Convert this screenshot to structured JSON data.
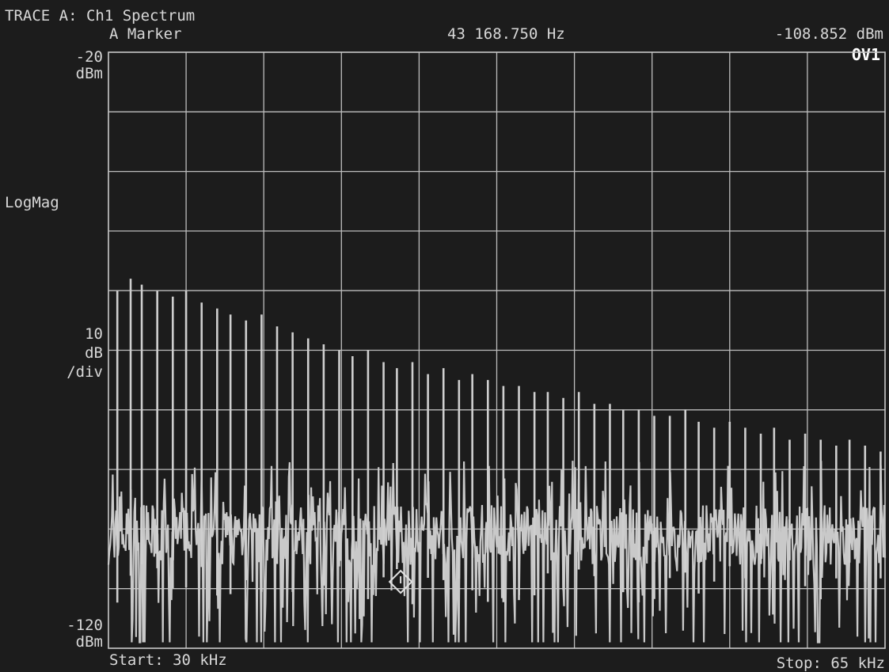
{
  "header": {
    "trace_title": "TRACE A: Ch1 Spectrum",
    "marker_label": "A Marker",
    "marker_freq": "43 168.750 Hz",
    "marker_level": "-108.852 dBm",
    "overload_badge": "OV1"
  },
  "yaxis": {
    "top_value": "-20",
    "top_unit": "dBm",
    "scale_type": "LogMag",
    "scale_value": "10",
    "scale_unit_1": "dB",
    "scale_unit_2": "/div",
    "bottom_value": "-120",
    "bottom_unit": "dBm"
  },
  "xaxis": {
    "start_label": "Start: 30 kHz",
    "stop_label": "Stop: 65 kHz"
  },
  "colors": {
    "background": "#1c1c1c",
    "grid": "#bdbdbd",
    "trace": "#c9c9c9",
    "text": "#d8d8d8"
  },
  "chart_data": {
    "type": "line",
    "x_unit": "kHz",
    "y_unit": "dBm",
    "xlim": [
      30,
      65
    ],
    "ylim": [
      -120,
      -20
    ],
    "x_divisions": 10,
    "y_divisions": 10,
    "grid": true,
    "marker": {
      "x": 43.16875,
      "y": -108.852,
      "shape": "diamond"
    },
    "noise_floor_dbm": -101,
    "harmonic_peaks": {
      "x": [
        30.4,
        31.0,
        31.5,
        32.2,
        32.9,
        33.5,
        34.2,
        34.9,
        35.5,
        36.2,
        36.9,
        37.6,
        38.3,
        39.0,
        39.7,
        40.4,
        41.0,
        41.7,
        42.4,
        43.0,
        43.7,
        44.4,
        45.1,
        45.8,
        46.4,
        47.1,
        47.8,
        48.5,
        49.2,
        49.8,
        50.5,
        51.2,
        51.9,
        52.6,
        53.2,
        53.9,
        54.6,
        55.3,
        56.0,
        56.6,
        57.3,
        58.0,
        58.7,
        59.4,
        60.0,
        60.7,
        61.4,
        62.1,
        62.8,
        63.4,
        64.1,
        64.8
      ],
      "y": [
        -60,
        -58,
        -59,
        -60,
        -61,
        -60,
        -62,
        -63,
        -64,
        -65,
        -64,
        -66,
        -67,
        -68,
        -69,
        -70,
        -71,
        -70,
        -72,
        -73,
        -72,
        -74,
        -73,
        -75,
        -74,
        -75,
        -76,
        -76,
        -77,
        -77,
        -78,
        -77,
        -79,
        -79,
        -80,
        -80,
        -81,
        -81,
        -80,
        -82,
        -83,
        -82,
        -83,
        -84,
        -83,
        -85,
        -84,
        -85,
        -86,
        -85,
        -86,
        -87
      ]
    }
  }
}
